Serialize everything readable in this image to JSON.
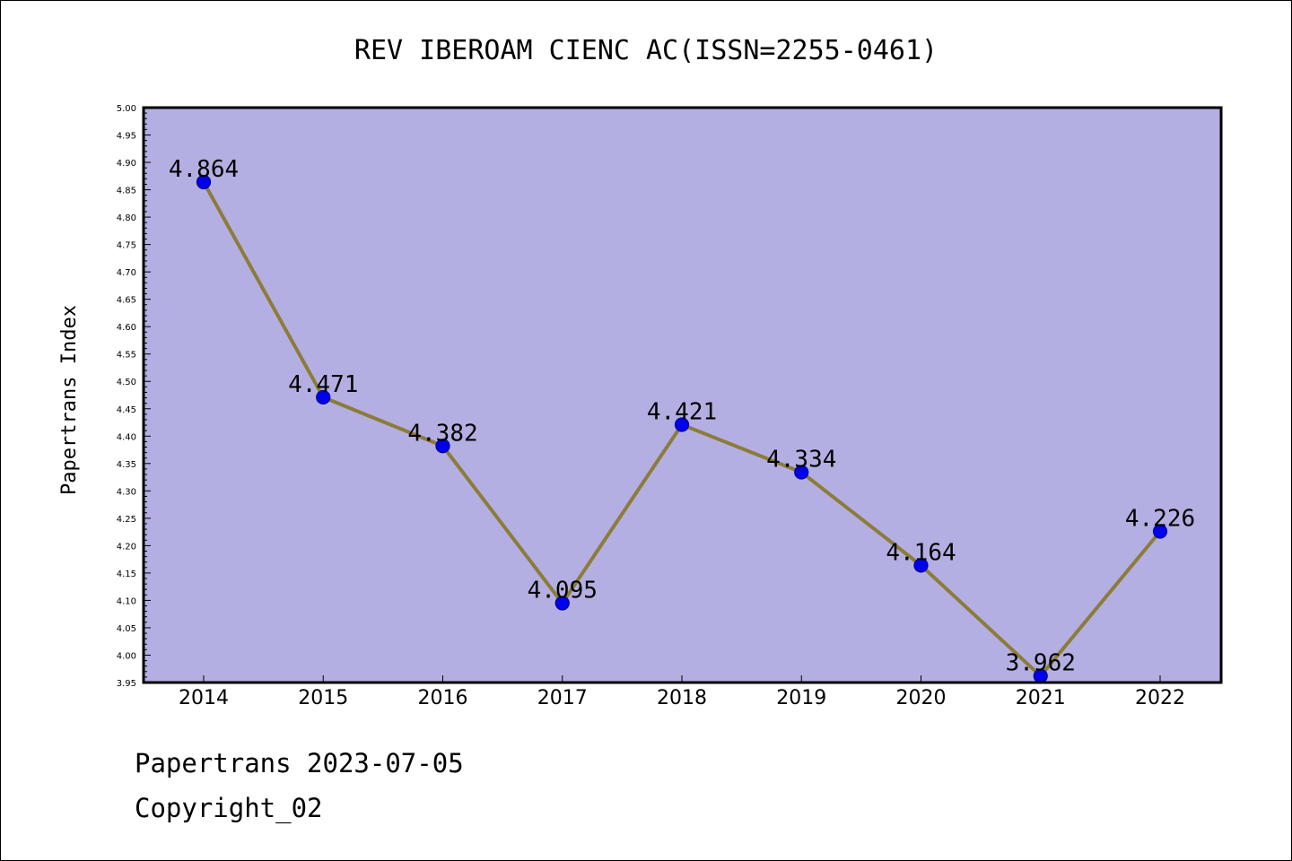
{
  "chart_data": {
    "type": "line",
    "title": "REV IBEROAM CIENC AC(ISSN=2255-0461)",
    "xlabel": "",
    "ylabel": "Papertrans Index",
    "x": [
      "2014",
      "2015",
      "2016",
      "2017",
      "2018",
      "2019",
      "2020",
      "2021",
      "2022"
    ],
    "values": [
      4.864,
      4.471,
      4.382,
      4.095,
      4.421,
      4.334,
      4.164,
      3.962,
      4.226
    ],
    "data_labels": [
      "4.864",
      "4.471",
      "4.382",
      "4.095",
      "4.421",
      "4.334",
      "4.164",
      "3.962",
      "4.226"
    ],
    "ylim": [
      3.95,
      5.0
    ],
    "yticks": [
      "3.95",
      "4.00",
      "4.05",
      "4.10",
      "4.15",
      "4.20",
      "4.25",
      "4.30",
      "4.35",
      "4.40",
      "4.45",
      "4.50",
      "4.55",
      "4.60",
      "4.65",
      "4.70",
      "4.75",
      "4.80",
      "4.85",
      "4.90",
      "4.95",
      "5.00"
    ],
    "grid": false,
    "legend": "none",
    "colors": {
      "plot_background": "#b4afe2",
      "line": "#8c7c3a",
      "marker": "#0000ee",
      "marker_edge": "#00008b"
    }
  },
  "footer": {
    "date": "Papertrans 2023-07-05",
    "copyright": "Copyright_02"
  }
}
